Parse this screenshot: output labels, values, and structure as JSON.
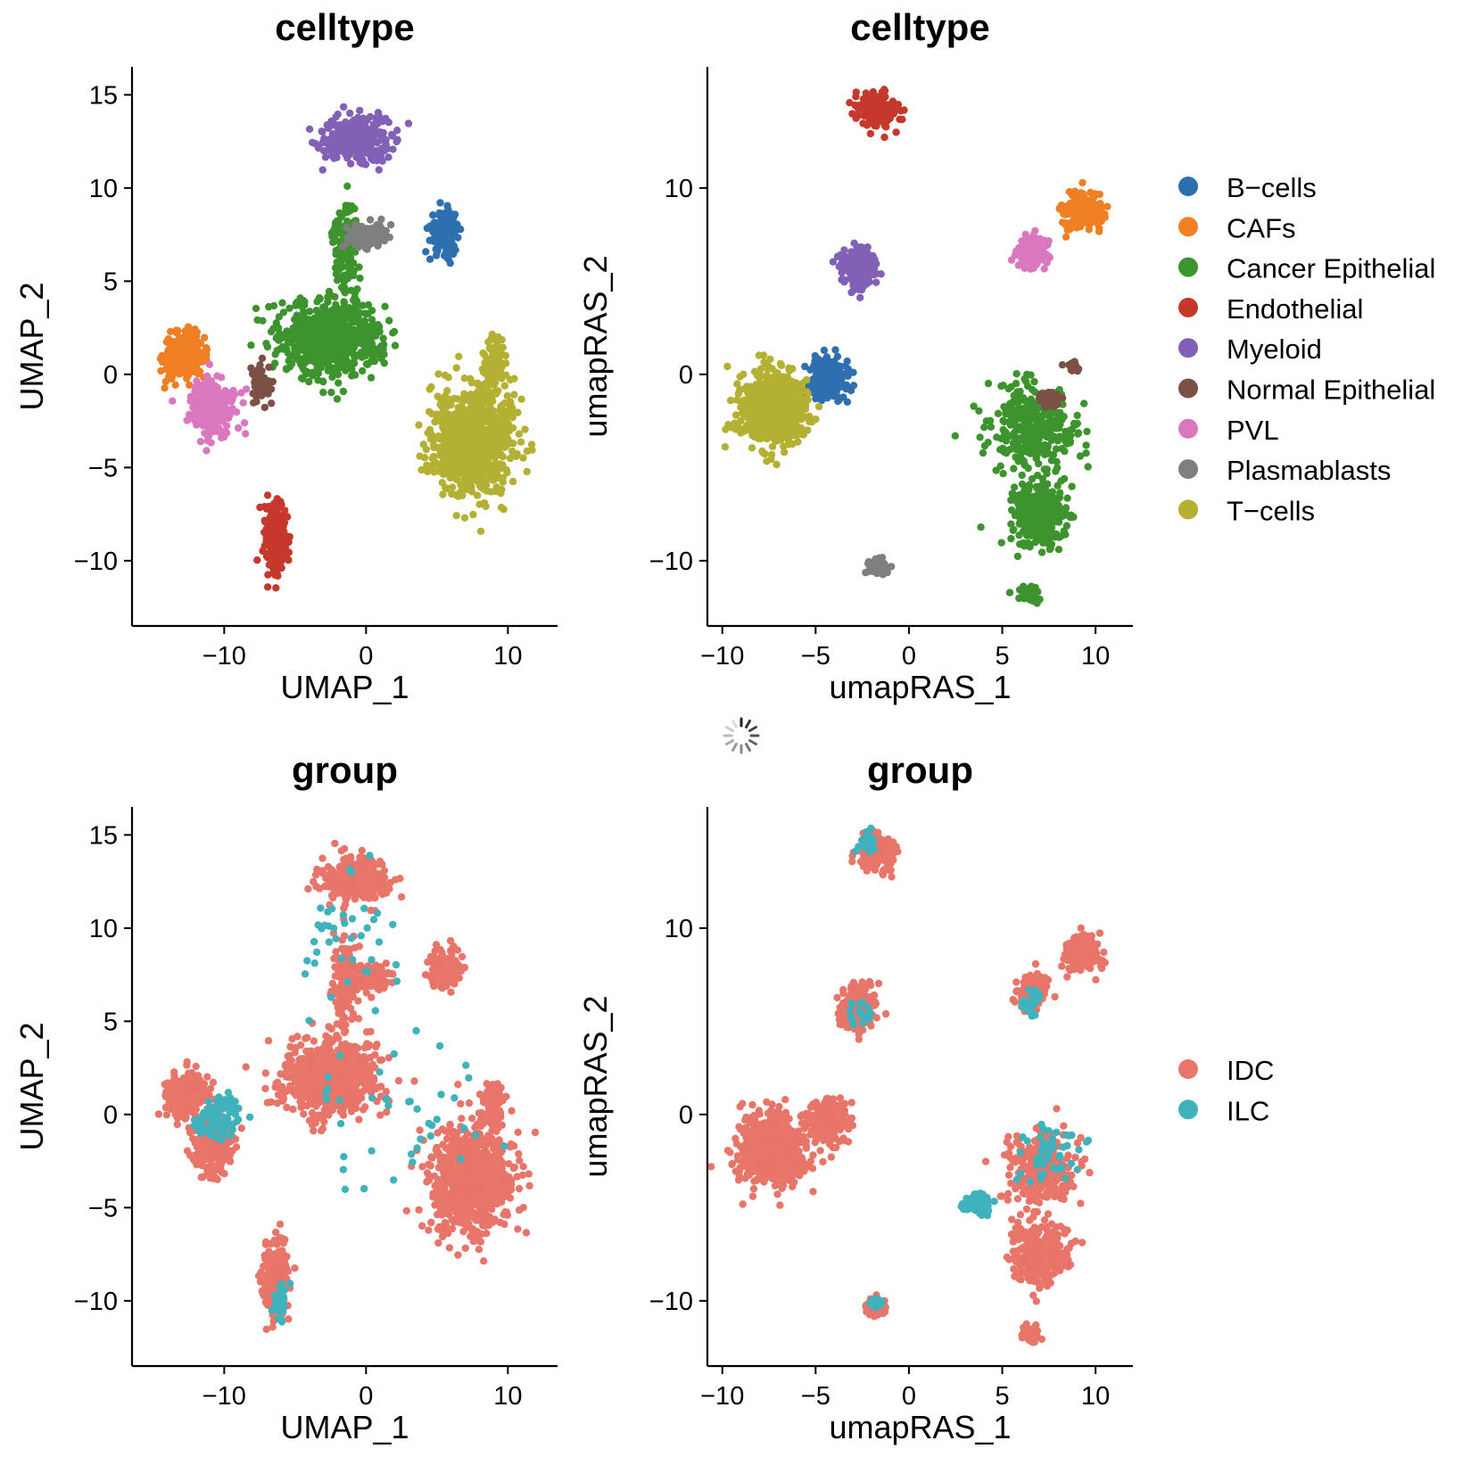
{
  "chart_data": [
    {
      "type": "scatter",
      "title": "celltype",
      "xlabel": "UMAP_1",
      "ylabel": "UMAP_2",
      "xlim": [
        -16.5,
        13.5
      ],
      "ylim": [
        -13.5,
        16.5
      ],
      "xticks": [
        -10,
        0,
        10
      ],
      "yticks": [
        -10,
        -5,
        0,
        5,
        10,
        15
      ],
      "xtick_labels": [
        "−10",
        "0",
        "10"
      ],
      "ytick_labels": [
        "−10",
        "−5",
        "0",
        "5",
        "10",
        "15"
      ],
      "grid": false,
      "legend": "right",
      "series": [
        {
          "name": "B−cells",
          "color": "#2e6fb0",
          "clusters": [
            {
              "center": [
                5.5,
                7.7
              ],
              "spread": [
                0.9,
                1.0
              ],
              "n": 170
            }
          ]
        },
        {
          "name": "CAFs",
          "color": "#f07f24",
          "clusters": [
            {
              "center": [
                -12.8,
                1.0
              ],
              "spread": [
                1.3,
                1.1
              ],
              "n": 260
            }
          ]
        },
        {
          "name": "Cancer Epithelial",
          "color": "#3d942e",
          "clusters": [
            {
              "center": [
                -2.5,
                2.0
              ],
              "spread": [
                3.2,
                1.8
              ],
              "n": 700
            },
            {
              "center": [
                -1.5,
                7.0
              ],
              "spread": [
                0.8,
                2.2
              ],
              "n": 140
            }
          ]
        },
        {
          "name": "Endothelial",
          "color": "#c7382c",
          "clusters": [
            {
              "center": [
                -6.3,
                -8.8
              ],
              "spread": [
                0.8,
                1.8
              ],
              "n": 240
            }
          ]
        },
        {
          "name": "Myeloid",
          "color": "#8260b5",
          "clusters": [
            {
              "center": [
                -0.8,
                12.6
              ],
              "spread": [
                2.2,
                1.1
              ],
              "n": 300
            }
          ]
        },
        {
          "name": "Normal Epithelial",
          "color": "#7c5044",
          "clusters": [
            {
              "center": [
                -7.5,
                -0.5
              ],
              "spread": [
                0.6,
                0.9
              ],
              "n": 60
            }
          ]
        },
        {
          "name": "PVL",
          "color": "#d978be",
          "clusters": [
            {
              "center": [
                -10.8,
                -1.8
              ],
              "spread": [
                1.4,
                1.3
              ],
              "n": 260
            }
          ]
        },
        {
          "name": "Plasmablasts",
          "color": "#7f7f7f",
          "clusters": [
            {
              "center": [
                0.2,
                7.4
              ],
              "spread": [
                1.2,
                0.7
              ],
              "n": 120
            }
          ]
        },
        {
          "name": "T−cells",
          "color": "#b4b033",
          "clusters": [
            {
              "center": [
                7.5,
                -3.5
              ],
              "spread": [
                2.6,
                2.6
              ],
              "n": 800
            },
            {
              "center": [
                9.0,
                0.5
              ],
              "spread": [
                0.7,
                1.2
              ],
              "n": 100
            }
          ]
        }
      ]
    },
    {
      "type": "scatter",
      "title": "celltype",
      "xlabel": "umapRAS_1",
      "ylabel": "umapRAS_2",
      "xlim": [
        -10.8,
        12.0
      ],
      "ylim": [
        -13.5,
        16.5
      ],
      "xticks": [
        -10,
        -5,
        0,
        5,
        10
      ],
      "yticks": [
        -10,
        0,
        10
      ],
      "xtick_labels": [
        "−10",
        "−5",
        "0",
        "5",
        "10"
      ],
      "ytick_labels": [
        "−10",
        "0",
        "10"
      ],
      "grid": false,
      "legend": "right",
      "series": [
        {
          "name": "B−cells",
          "color": "#2e6fb0",
          "clusters": [
            {
              "center": [
                -4.3,
                -0.3
              ],
              "spread": [
                1.0,
                1.1
              ],
              "n": 220
            }
          ]
        },
        {
          "name": "CAFs",
          "color": "#f07f24",
          "clusters": [
            {
              "center": [
                9.3,
                8.7
              ],
              "spread": [
                1.0,
                0.9
              ],
              "n": 180
            }
          ]
        },
        {
          "name": "Cancer Epithelial",
          "color": "#3d942e",
          "clusters": [
            {
              "center": [
                7.0,
                -7.5
              ],
              "spread": [
                1.3,
                1.4
              ],
              "n": 330
            },
            {
              "center": [
                6.5,
                -3.0
              ],
              "spread": [
                2.2,
                2.2
              ],
              "n": 320
            },
            {
              "center": [
                6.5,
                -11.8
              ],
              "spread": [
                0.5,
                0.4
              ],
              "n": 40
            }
          ]
        },
        {
          "name": "Endothelial",
          "color": "#c7382c",
          "clusters": [
            {
              "center": [
                -1.7,
                14.2
              ],
              "spread": [
                0.9,
                0.8
              ],
              "n": 220
            }
          ]
        },
        {
          "name": "Myeloid",
          "color": "#8260b5",
          "clusters": [
            {
              "center": [
                -2.7,
                5.8
              ],
              "spread": [
                0.8,
                1.0
              ],
              "n": 260
            }
          ]
        },
        {
          "name": "Normal Epithelial",
          "color": "#7c5044",
          "clusters": [
            {
              "center": [
                7.6,
                -1.4
              ],
              "spread": [
                0.6,
                0.35
              ],
              "n": 70
            },
            {
              "center": [
                8.8,
                0.4
              ],
              "spread": [
                0.3,
                0.25
              ],
              "n": 20
            }
          ]
        },
        {
          "name": "PVL",
          "color": "#d978be",
          "clusters": [
            {
              "center": [
                6.6,
                6.6
              ],
              "spread": [
                0.7,
                0.8
              ],
              "n": 170
            }
          ]
        },
        {
          "name": "Plasmablasts",
          "color": "#7f7f7f",
          "clusters": [
            {
              "center": [
                -1.7,
                -10.3
              ],
              "spread": [
                0.5,
                0.4
              ],
              "n": 80
            }
          ]
        },
        {
          "name": "T−cells",
          "color": "#b4b033",
          "clusters": [
            {
              "center": [
                -7.3,
                -1.9
              ],
              "spread": [
                1.6,
                1.7
              ],
              "n": 700
            }
          ]
        }
      ]
    },
    {
      "type": "scatter",
      "title": "group",
      "xlabel": "UMAP_1",
      "ylabel": "UMAP_2",
      "xlim": [
        -16.5,
        13.5
      ],
      "ylim": [
        -13.5,
        16.5
      ],
      "xticks": [
        -10,
        0,
        10
      ],
      "yticks": [
        -10,
        -5,
        0,
        5,
        10,
        15
      ],
      "xtick_labels": [
        "−10",
        "0",
        "10"
      ],
      "ytick_labels": [
        "−10",
        "−5",
        "0",
        "5",
        "10",
        "15"
      ],
      "grid": false,
      "legend": "right",
      "series": [
        {
          "name": "IDC",
          "color": "#e8756a",
          "clusters": [
            {
              "center": [
                -12.8,
                1.0
              ],
              "spread": [
                1.3,
                1.1
              ],
              "n": 240
            },
            {
              "center": [
                -10.8,
                -1.8
              ],
              "spread": [
                1.4,
                1.3
              ],
              "n": 240
            },
            {
              "center": [
                -2.5,
                2.0
              ],
              "spread": [
                3.2,
                1.8
              ],
              "n": 700
            },
            {
              "center": [
                -1.5,
                7.0
              ],
              "spread": [
                0.8,
                2.2
              ],
              "n": 140
            },
            {
              "center": [
                -0.8,
                12.6
              ],
              "spread": [
                2.2,
                1.1
              ],
              "n": 300
            },
            {
              "center": [
                0.2,
                7.4
              ],
              "spread": [
                1.2,
                0.7
              ],
              "n": 110
            },
            {
              "center": [
                5.5,
                7.7
              ],
              "spread": [
                0.9,
                1.0
              ],
              "n": 160
            },
            {
              "center": [
                7.5,
                -3.5
              ],
              "spread": [
                2.6,
                2.6
              ],
              "n": 800
            },
            {
              "center": [
                9.0,
                0.5
              ],
              "spread": [
                0.7,
                1.2
              ],
              "n": 100
            },
            {
              "center": [
                -6.3,
                -8.8
              ],
              "spread": [
                0.8,
                1.8
              ],
              "n": 220
            }
          ]
        },
        {
          "name": "ILC",
          "color": "#3fb2bc",
          "clusters": [
            {
              "center": [
                -10.5,
                -0.2
              ],
              "spread": [
                1.5,
                1.1
              ],
              "n": 90
            },
            {
              "center": [
                -6.0,
                -10.0
              ],
              "spread": [
                0.6,
                0.9
              ],
              "n": 30
            },
            {
              "center": [
                -1.5,
                9.5
              ],
              "spread": [
                3.0,
                3.0
              ],
              "n": 40
            },
            {
              "center": [
                3.0,
                0.0
              ],
              "spread": [
                5.0,
                4.0
              ],
              "n": 40
            }
          ]
        }
      ]
    },
    {
      "type": "scatter",
      "title": "group",
      "xlabel": "umapRAS_1",
      "ylabel": "umapRAS_2",
      "xlim": [
        -10.8,
        12.0
      ],
      "ylim": [
        -13.5,
        16.5
      ],
      "xticks": [
        -10,
        -5,
        0,
        5,
        10
      ],
      "yticks": [
        -10,
        0,
        10
      ],
      "xtick_labels": [
        "−10",
        "−5",
        "0",
        "5",
        "10"
      ],
      "ytick_labels": [
        "−10",
        "0",
        "10"
      ],
      "grid": false,
      "legend": "right",
      "series": [
        {
          "name": "IDC",
          "color": "#e8756a",
          "clusters": [
            {
              "center": [
                -7.3,
                -1.9
              ],
              "spread": [
                1.6,
                1.7
              ],
              "n": 700
            },
            {
              "center": [
                -4.3,
                -0.3
              ],
              "spread": [
                1.0,
                1.1
              ],
              "n": 200
            },
            {
              "center": [
                -2.7,
                5.8
              ],
              "spread": [
                0.8,
                1.0
              ],
              "n": 250
            },
            {
              "center": [
                -1.7,
                14.0
              ],
              "spread": [
                0.9,
                0.8
              ],
              "n": 200
            },
            {
              "center": [
                9.3,
                8.7
              ],
              "spread": [
                1.0,
                0.9
              ],
              "n": 180
            },
            {
              "center": [
                6.6,
                6.6
              ],
              "spread": [
                0.7,
                0.8
              ],
              "n": 150
            },
            {
              "center": [
                7.0,
                -7.5
              ],
              "spread": [
                1.3,
                1.4
              ],
              "n": 330
            },
            {
              "center": [
                7.0,
                -3.0
              ],
              "spread": [
                1.8,
                2.0
              ],
              "n": 260
            },
            {
              "center": [
                -1.7,
                -10.3
              ],
              "spread": [
                0.5,
                0.4
              ],
              "n": 70
            },
            {
              "center": [
                6.5,
                -11.8
              ],
              "spread": [
                0.5,
                0.4
              ],
              "n": 40
            }
          ]
        },
        {
          "name": "ILC",
          "color": "#3fb2bc",
          "clusters": [
            {
              "center": [
                3.6,
                -4.8
              ],
              "spread": [
                0.7,
                0.4
              ],
              "n": 120
            },
            {
              "center": [
                -2.3,
                14.6
              ],
              "spread": [
                0.4,
                0.4
              ],
              "n": 30
            },
            {
              "center": [
                6.5,
                6.0
              ],
              "spread": [
                0.6,
                0.7
              ],
              "n": 30
            },
            {
              "center": [
                7.5,
                -2.0
              ],
              "spread": [
                1.8,
                1.6
              ],
              "n": 50
            },
            {
              "center": [
                -2.7,
                5.5
              ],
              "spread": [
                0.7,
                0.9
              ],
              "n": 20
            },
            {
              "center": [
                -1.7,
                -10.0
              ],
              "spread": [
                0.4,
                0.3
              ],
              "n": 15
            }
          ]
        }
      ]
    }
  ],
  "legends": {
    "celltype": [
      "B−cells",
      "CAFs",
      "Cancer Epithelial",
      "Endothelial",
      "Myeloid",
      "Normal Epithelial",
      "PVL",
      "Plasmablasts",
      "T−cells"
    ],
    "group": [
      "IDC",
      "ILC"
    ]
  },
  "loading_indicator": {
    "icon": "spinner-icon"
  }
}
